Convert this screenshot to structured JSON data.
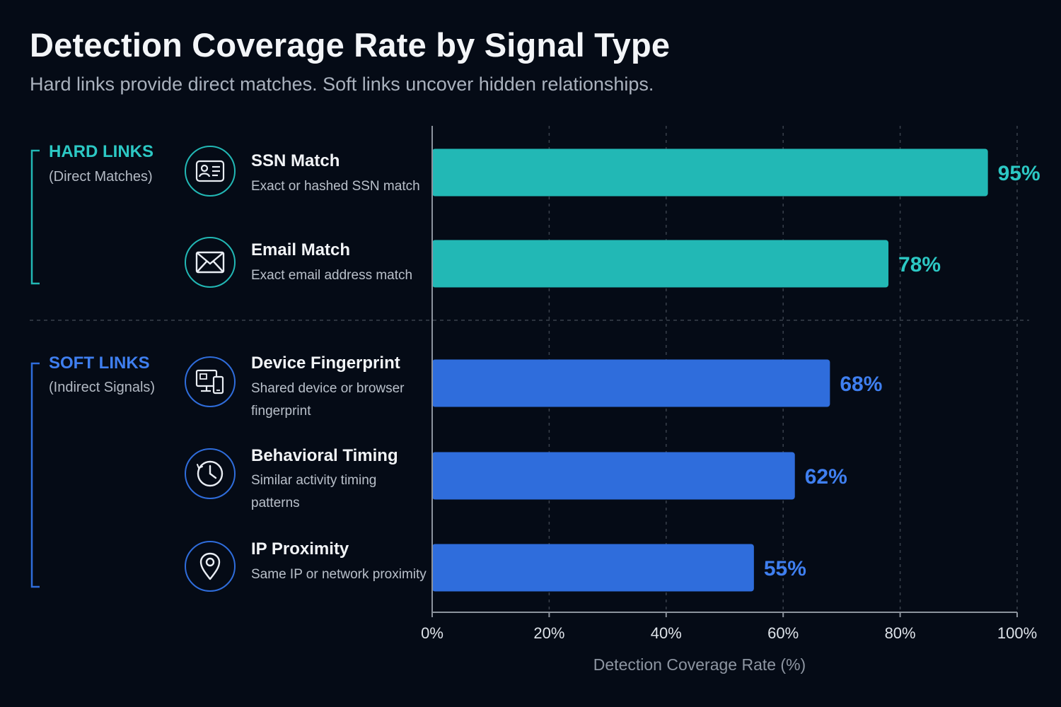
{
  "colors": {
    "background": "#050b16",
    "hard": "#22b8b5",
    "soft": "#2f6ddc",
    "hard_label": "#2cc8c4",
    "soft_label": "#3f7ff0",
    "grid": "#3a414c",
    "axis": "#8c939d"
  },
  "groups": {
    "hard": {
      "name": "HARD LINKS",
      "note": "(Direct Matches)"
    },
    "soft": {
      "name": "SOFT LINKS",
      "note": "(Indirect Signals)"
    }
  },
  "signals": [
    {
      "label": "SSN Match",
      "description": "Exact or hashed SSN match",
      "icon": "id-card-icon",
      "group": "hard"
    },
    {
      "label": "Email Match",
      "description": "Exact email address match",
      "icon": "envelope-icon",
      "group": "hard"
    },
    {
      "label": "Device Fingerprint",
      "description": "Shared device or browser fingerprint",
      "icon": "devices-icon",
      "group": "soft"
    },
    {
      "label": "Behavioral Timing",
      "description": "Similar activity timing patterns",
      "icon": "clock-icon",
      "group": "soft"
    },
    {
      "label": "IP Proximity",
      "description": "Same IP or network proximity",
      "icon": "location-pin-icon",
      "group": "soft"
    }
  ],
  "chart_data": {
    "type": "bar",
    "orientation": "horizontal",
    "title": "Detection Coverage Rate by Signal Type",
    "subtitle": "Hard links provide direct matches. Soft links uncover hidden relationships.",
    "categories": [
      "SSN Match",
      "Email Match",
      "Device Fingerprint",
      "Behavioral Timing",
      "IP Proximity"
    ],
    "values": [
      95,
      78,
      68,
      62,
      55
    ],
    "value_labels": [
      "95%",
      "78%",
      "68%",
      "62%",
      "55%"
    ],
    "xlabel": "Detection Coverage Rate (%)",
    "ylabel": "",
    "xlim": [
      0,
      100
    ],
    "xticks": [
      0,
      20,
      40,
      60,
      80,
      100
    ],
    "xtick_labels": [
      "0%",
      "20%",
      "40%",
      "60%",
      "80%",
      "100%"
    ],
    "grid": true
  }
}
